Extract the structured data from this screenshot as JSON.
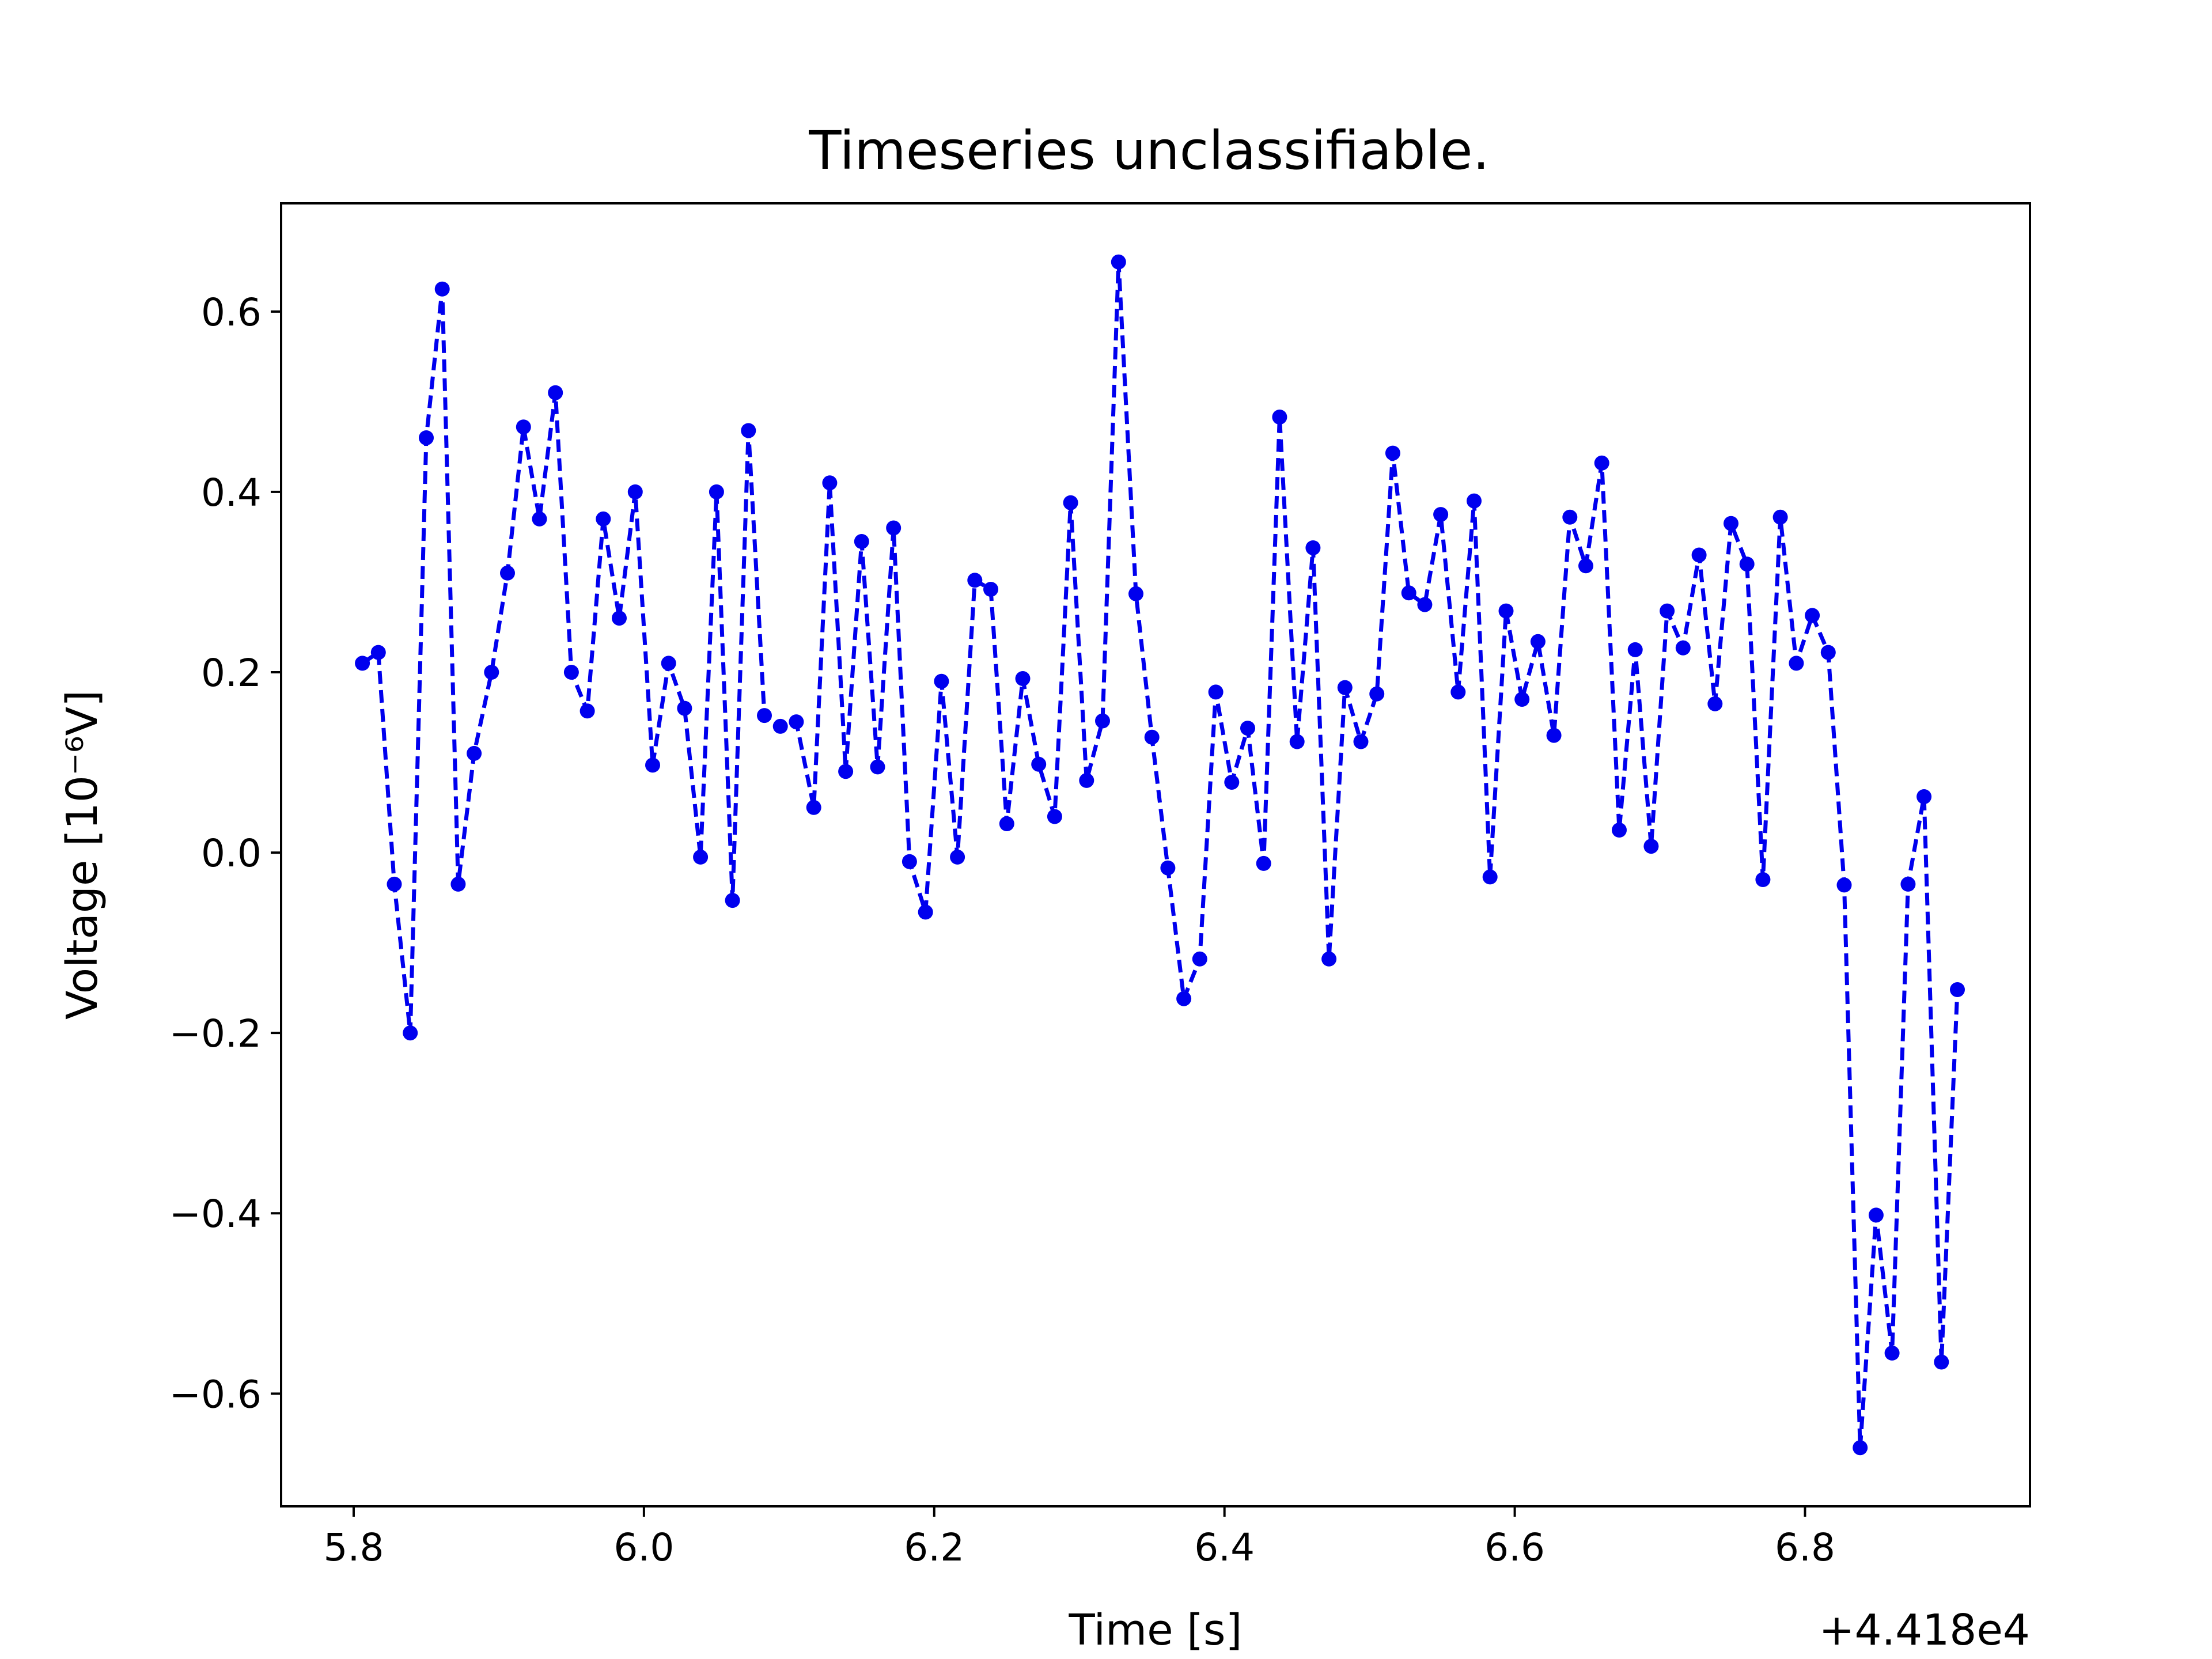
{
  "chart_data": {
    "type": "line",
    "title": "Timeseries unclassifiable.",
    "xlabel": "Time [s]",
    "ylabel": "Voltage [10⁻⁶V]",
    "x_offset_label": "+4.418e4",
    "xlim": [
      5.75,
      6.955
    ],
    "ylim": [
      -0.725,
      0.72
    ],
    "x_ticks": [
      5.8,
      6.0,
      6.2,
      6.4,
      6.6,
      6.8
    ],
    "x_tick_labels": [
      "5.8",
      "6.0",
      "6.2",
      "6.4",
      "6.6",
      "6.8"
    ],
    "y_ticks": [
      0.6,
      0.4,
      0.2,
      0.0,
      -0.2,
      -0.4,
      -0.6
    ],
    "y_tick_labels": [
      "0.6",
      "0.4",
      "0.2",
      "0.0",
      "−0.2",
      "−0.4",
      "−0.6"
    ],
    "grid": false,
    "series": [
      {
        "color": "#0000ee",
        "line_style": "dashed",
        "marker": "circle",
        "x": [
          5.806,
          5.817,
          5.828,
          5.839,
          5.85,
          5.861,
          5.872,
          5.883,
          5.895,
          5.906,
          5.917,
          5.928,
          5.939,
          5.95,
          5.961,
          5.972,
          5.983,
          5.994,
          6.006,
          6.017,
          6.028,
          6.039,
          6.05,
          6.061,
          6.072,
          6.083,
          6.094,
          6.105,
          6.117,
          6.128,
          6.139,
          6.15,
          6.161,
          6.172,
          6.183,
          6.194,
          6.205,
          6.216,
          6.228,
          6.239,
          6.25,
          6.261,
          6.272,
          6.283,
          6.294,
          6.305,
          6.316,
          6.327,
          6.339,
          6.35,
          6.361,
          6.372,
          6.383,
          6.394,
          6.405,
          6.416,
          6.427,
          6.438,
          6.45,
          6.461,
          6.472,
          6.483,
          6.494,
          6.505,
          6.516,
          6.527,
          6.538,
          6.549,
          6.561,
          6.572,
          6.583,
          6.594,
          6.605,
          6.616,
          6.627,
          6.638,
          6.649,
          6.66,
          6.672,
          6.683,
          6.694,
          6.705,
          6.716,
          6.727,
          6.738,
          6.749,
          6.76,
          6.771,
          6.783,
          6.794,
          6.805,
          6.816,
          6.827,
          6.838,
          6.849,
          6.86,
          6.871,
          6.882,
          6.894,
          6.905
        ],
        "y": [
          0.21,
          0.222,
          -0.035,
          -0.2,
          0.46,
          0.625,
          -0.035,
          0.11,
          0.2,
          0.31,
          0.472,
          0.37,
          0.51,
          0.2,
          0.157,
          0.37,
          0.26,
          0.4,
          0.097,
          0.21,
          0.16,
          -0.005,
          0.4,
          -0.053,
          0.468,
          0.152,
          0.14,
          0.145,
          0.05,
          0.41,
          0.09,
          0.345,
          0.095,
          0.36,
          -0.01,
          -0.066,
          0.19,
          -0.005,
          0.302,
          0.292,
          0.032,
          0.193,
          0.098,
          0.04,
          0.388,
          0.08,
          0.146,
          0.655,
          0.287,
          0.128,
          -0.017,
          -0.162,
          -0.118,
          0.178,
          0.078,
          0.138,
          -0.012,
          0.483,
          0.123,
          0.338,
          -0.118,
          0.183,
          0.123,
          0.176,
          0.443,
          0.288,
          0.275,
          0.375,
          0.178,
          0.39,
          -0.027,
          0.268,
          0.17,
          0.234,
          0.13,
          0.372,
          0.318,
          0.432,
          0.025,
          0.225,
          0.007,
          0.268,
          0.227,
          0.33,
          0.165,
          0.365,
          0.32,
          -0.03,
          0.372,
          0.21,
          0.263,
          0.222,
          -0.036,
          -0.66,
          -0.402,
          -0.555,
          -0.035,
          0.062,
          -0.565,
          -0.152
        ]
      }
    ]
  }
}
